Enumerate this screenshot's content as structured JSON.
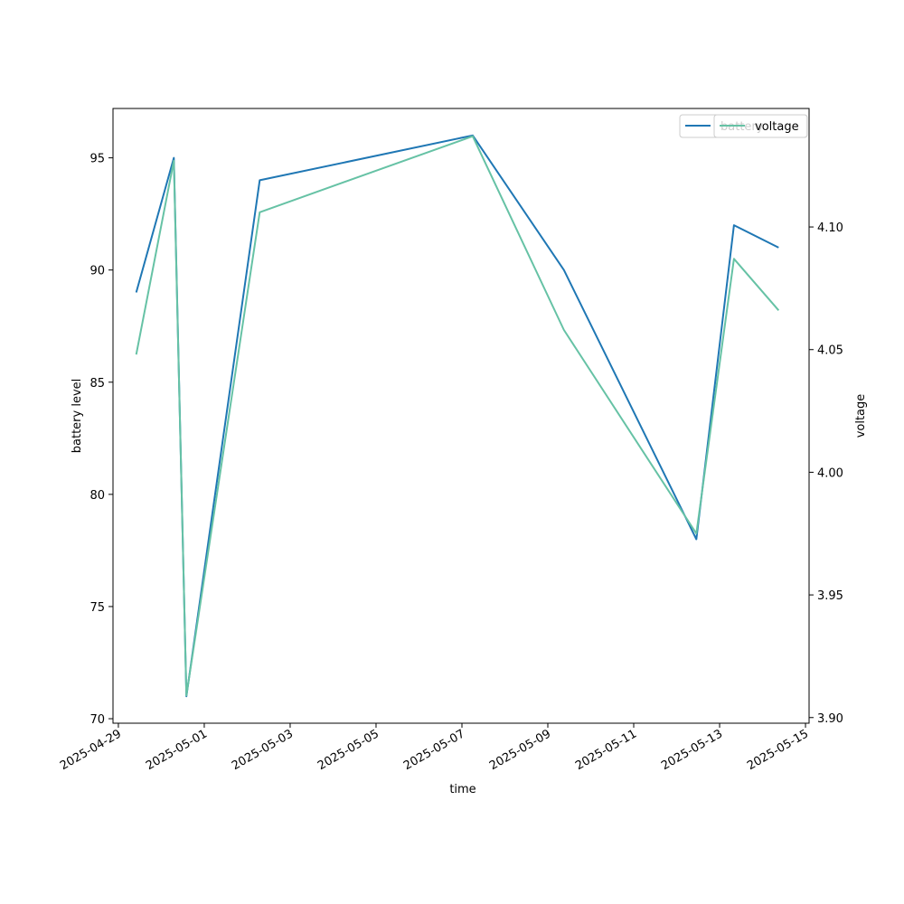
{
  "chart_data": {
    "type": "line",
    "title": "",
    "xlabel": "time",
    "ylabel": "battery level",
    "ylabel_right": "voltage",
    "x": [
      "2025-04-29 10:00",
      "2025-04-30 07:00",
      "2025-04-30 14:00",
      "2025-05-02 07:00",
      "2025-05-07 06:00",
      "2025-05-09 09:00",
      "2025-05-12 11:00",
      "2025-05-13 08:00",
      "2025-05-14 09:00"
    ],
    "xlim": [
      "2025-04-28 21:00",
      "2025-05-15 02:00"
    ],
    "xticks": [
      "2025-04-29",
      "2025-05-01",
      "2025-05-03",
      "2025-05-05",
      "2025-05-07",
      "2025-05-09",
      "2025-05-11",
      "2025-05-13",
      "2025-05-15"
    ],
    "ylim": [
      69.8,
      97.2
    ],
    "yticks": [
      "70",
      "75",
      "80",
      "85",
      "90",
      "95"
    ],
    "ylim_right": [
      3.8977,
      4.1483
    ],
    "yticks_right": [
      "3.90",
      "3.95",
      "4.00",
      "4.05",
      "4.10"
    ],
    "series": [
      {
        "name": "battery",
        "axis": "left",
        "color": "#1f77b4",
        "values": [
          89,
          95,
          71,
          94,
          96,
          90,
          78,
          92,
          91
        ]
      },
      {
        "name": "voltage",
        "axis": "right",
        "color": "#66c2a5",
        "values": [
          4.048,
          4.127,
          3.909,
          4.106,
          4.137,
          4.058,
          3.975,
          4.087,
          4.066
        ]
      }
    ],
    "grid": false,
    "legend_placement": "top-right"
  }
}
